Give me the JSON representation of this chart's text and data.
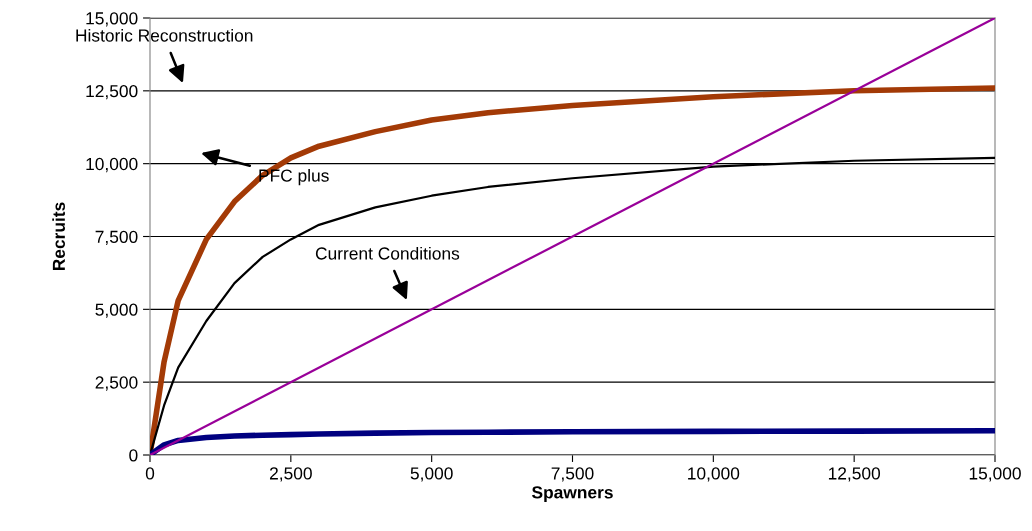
{
  "chart_data": {
    "type": "line",
    "xlabel": "Spawners",
    "ylabel": "Recruits",
    "x": [
      0,
      250,
      500,
      1000,
      1500,
      2000,
      2500,
      3000,
      4000,
      5000,
      6000,
      7500,
      10000,
      12500,
      15000
    ],
    "series": [
      {
        "color": "#a33a06",
        "values": [
          0,
          3200,
          5300,
          7400,
          8700,
          9600,
          10200,
          10600,
          11100,
          11500,
          11750,
          12000,
          12300,
          12500,
          12600
        ]
      },
      {
        "color": "#000000",
        "values": [
          0,
          1700,
          3000,
          4600,
          5900,
          6800,
          7400,
          7900,
          8500,
          8900,
          9200,
          9500,
          9900,
          10100,
          10200
        ]
      },
      {
        "color": "#000080",
        "values": [
          0,
          350,
          500,
          600,
          650,
          680,
          700,
          720,
          750,
          770,
          780,
          800,
          810,
          820,
          830
        ]
      },
      {
        "color": "#990099",
        "x": [
          0,
          15000
        ],
        "values": [
          0,
          15000
        ]
      }
    ],
    "annotations": [
      "Historic Reconstruction",
      "PFC plus",
      "Current Conditions"
    ],
    "xlim": [
      0,
      15000
    ],
    "ylim": [
      0,
      15000
    ],
    "xticks": [
      {
        "value": 0,
        "label": "0"
      },
      {
        "value": 2500,
        "label": "2,500"
      },
      {
        "value": 5000,
        "label": "5,000"
      },
      {
        "value": 7500,
        "label": "7,500"
      },
      {
        "value": 10000,
        "label": "10,000"
      },
      {
        "value": 12500,
        "label": "12,500"
      },
      {
        "value": 15000,
        "label": "15,000"
      }
    ],
    "yticks": [
      {
        "value": 0,
        "label": "0"
      },
      {
        "value": 2500,
        "label": "2,500"
      },
      {
        "value": 5000,
        "label": "5,000"
      },
      {
        "value": 7500,
        "label": "7,500"
      },
      {
        "value": 10000,
        "label": "10,000"
      },
      {
        "value": 12500,
        "label": "12,500"
      },
      {
        "value": 15000,
        "label": "15,000"
      }
    ],
    "grid": "y",
    "legend": false,
    "marker": "none",
    "line_style": "solid"
  }
}
